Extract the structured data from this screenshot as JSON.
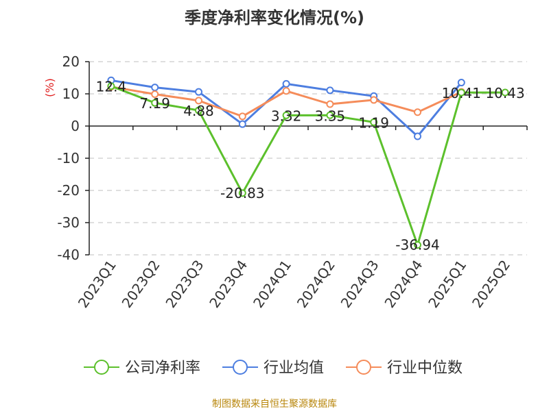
{
  "chart_data": {
    "type": "line",
    "title": "季度净利率变化情况(%)",
    "ylabel": "(%)",
    "xlabel": "",
    "categories": [
      "2023Q1",
      "2023Q2",
      "2023Q3",
      "2023Q4",
      "2024Q1",
      "2024Q2",
      "2024Q3",
      "2024Q4",
      "2025Q1",
      "2025Q2"
    ],
    "ylim": [
      -40,
      20
    ],
    "yticks": [
      20,
      10,
      0,
      -10,
      -20,
      -30,
      -40
    ],
    "grid": true,
    "legend_position": "bottom",
    "series": [
      {
        "name": "公司净利率",
        "color": "#5cc02c",
        "values": [
          12.4,
          7.19,
          4.88,
          -20.83,
          3.32,
          3.35,
          1.19,
          -36.94,
          10.41,
          10.43
        ],
        "labels": [
          "12.4",
          "7.19",
          "4.88",
          "-20.83",
          "3.32",
          "3.35",
          "1.19",
          "-36.94",
          "10.41",
          "10.43"
        ]
      },
      {
        "name": "行业均值",
        "color": "#4d7ee0",
        "values": [
          14.2,
          12.0,
          10.6,
          0.6,
          13.1,
          11.1,
          9.3,
          -3.2,
          13.5,
          null
        ]
      },
      {
        "name": "行业中位数",
        "color": "#f58c5a",
        "values": [
          12.2,
          9.9,
          7.9,
          3.0,
          10.9,
          6.8,
          8.1,
          4.3,
          10.6,
          null
        ]
      }
    ]
  },
  "source": "制图数据来自恒生聚源数据库"
}
